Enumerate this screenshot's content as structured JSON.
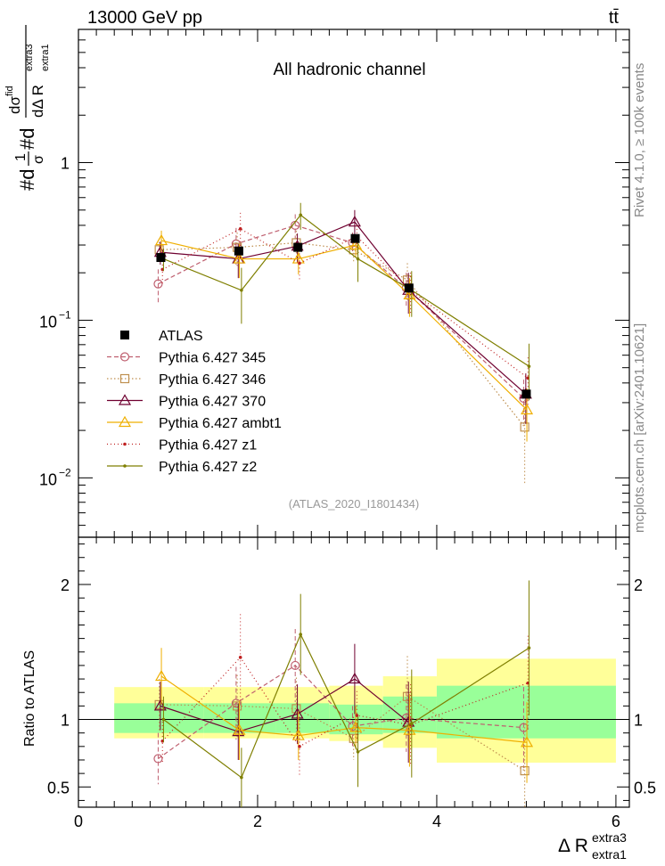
{
  "chart_data": {
    "type": "line",
    "header_left": "13000 GeV pp",
    "header_right": "tt̄",
    "annotation": "All hadronic channel",
    "analysis_label": "(ATLAS_2020_I1801434)",
    "side_label_top": "Rivet 4.1.0, ≥ 100k events",
    "side_label_bottom": "mcplots.cern.ch [arXiv:2401.10621]",
    "ylabel_main": "#d1/σ#d dσ^{fid} / dΔ R_{extra1}^{extra3}",
    "ylabel_main_parts": {
      "p1": "#d",
      "p2": "1",
      "p3": "σ",
      "p4": "#d",
      "p5": "dσ",
      "p6": "fid",
      "p7": "dΔ R",
      "p8": "extra1",
      "p9": "extra3"
    },
    "ylabel_ratio": "Ratio to ATLAS",
    "xlabel": {
      "main": "Δ R",
      "sup": "extra3",
      "sub": "extra1"
    },
    "xlim": [
      0,
      6.15
    ],
    "ylim_main": [
      0.0042,
      7.0
    ],
    "ylim_ratio": [
      0.35,
      2.35
    ],
    "x_ticks": [
      "0",
      "2",
      "4",
      "6"
    ],
    "y_ticks_main": [
      {
        "value": 1,
        "label": "1"
      },
      {
        "value": 0.1,
        "label": "10",
        "exp": "−1"
      },
      {
        "value": 0.01,
        "label": "10",
        "exp": "−2"
      }
    ],
    "y_ticks_ratio": [
      {
        "value": 0.5,
        "label": "0.5"
      },
      {
        "value": 1,
        "label": "1"
      },
      {
        "value": 2,
        "label": "2"
      }
    ],
    "bin_edges": [
      0.4,
      1.4,
      2.2,
      2.8,
      3.4,
      4.0,
      6.0
    ],
    "x": [
      0.92,
      1.79,
      2.45,
      3.09,
      3.69,
      5.0
    ],
    "data": {
      "name": "ATLAS",
      "values": [
        0.25,
        0.275,
        0.29,
        0.33,
        0.16,
        0.034
      ],
      "band_inner": [
        [
          0.9,
          1.12
        ],
        [
          0.9,
          1.12
        ],
        [
          0.9,
          1.12
        ],
        [
          0.89,
          1.11
        ],
        [
          0.9,
          1.17
        ],
        [
          0.86,
          1.25
        ]
      ],
      "band_outer": [
        [
          0.86,
          1.24
        ],
        [
          0.86,
          1.24
        ],
        [
          0.86,
          1.24
        ],
        [
          0.84,
          1.25
        ],
        [
          0.79,
          1.32
        ],
        [
          0.68,
          1.45
        ]
      ]
    },
    "series": [
      {
        "name": "Pythia 6.427 345",
        "color": "#bf5f6f",
        "dash": "5,3",
        "marker": "circle",
        "values": [
          0.17,
          0.305,
          0.4,
          0.31,
          0.16,
          0.032
        ],
        "errors": [
          0.04,
          0.08,
          0.07,
          0.05,
          0.04,
          0.01
        ],
        "ratio": [
          0.71,
          1.12,
          1.4,
          0.95,
          1.01,
          0.94
        ],
        "ratio_err": [
          0.19,
          0.27,
          0.27,
          0.15,
          0.25,
          0.3
        ]
      },
      {
        "name": "Pythia 6.427 346",
        "color": "#bf8f4f",
        "dash": "1.5,2.5",
        "marker": "square",
        "values": [
          0.28,
          0.29,
          0.31,
          0.28,
          0.18,
          0.021
        ],
        "errors": [
          0.05,
          0.07,
          0.06,
          0.05,
          0.05,
          0.012
        ],
        "ratio": [
          1.11,
          1.1,
          1.08,
          0.86,
          1.17,
          0.62
        ],
        "ratio_err": [
          0.19,
          0.23,
          0.23,
          0.16,
          0.3,
          0.35
        ]
      },
      {
        "name": "Pythia 6.427 370",
        "color": "#6f0030",
        "dash": "",
        "marker": "triangle",
        "values": [
          0.27,
          0.245,
          0.295,
          0.42,
          0.155,
          0.034
        ],
        "errors": [
          0.045,
          0.06,
          0.06,
          0.08,
          0.045,
          0.012
        ],
        "ratio": [
          1.1,
          0.91,
          1.04,
          1.3,
          0.98,
          null
        ],
        "ratio_err": [
          0.18,
          0.21,
          0.22,
          0.26,
          0.3,
          0
        ]
      },
      {
        "name": "Pythia 6.427 ambt1",
        "color": "#efaf00",
        "dash": "",
        "marker": "triangle",
        "values": [
          0.32,
          0.245,
          0.245,
          0.3,
          0.145,
          0.027
        ],
        "errors": [
          0.05,
          0.06,
          0.05,
          0.05,
          0.04,
          0.01
        ],
        "ratio": [
          1.32,
          0.92,
          0.88,
          0.94,
          0.92,
          0.83
        ],
        "ratio_err": [
          0.21,
          0.22,
          0.18,
          0.16,
          0.27,
          0.3
        ]
      },
      {
        "name": "Pythia 6.427 z1",
        "color": "#bf2020",
        "dash": "1,3",
        "marker": "dot",
        "values": [
          0.21,
          0.38,
          0.23,
          0.34,
          0.155,
          0.043
        ],
        "errors": [
          0.04,
          0.1,
          0.05,
          0.06,
          0.045,
          0.015
        ],
        "ratio": [
          0.84,
          1.46,
          0.8,
          1.03,
          0.96,
          1.27
        ],
        "ratio_err": [
          0.17,
          0.32,
          0.22,
          0.18,
          0.3,
          0.35
        ]
      },
      {
        "name": "Pythia 6.427 z2",
        "color": "#7f7f00",
        "dash": "",
        "marker": "dot",
        "values": [
          0.245,
          0.155,
          0.465,
          0.245,
          0.155,
          0.051
        ],
        "errors": [
          0.04,
          0.06,
          0.09,
          0.07,
          0.05,
          0.02
        ],
        "ratio": [
          1.0,
          0.57,
          1.63,
          0.76,
          0.97,
          1.53
        ],
        "ratio_err": [
          0.17,
          0.22,
          0.3,
          0.26,
          0.4,
          0.5
        ]
      }
    ]
  }
}
